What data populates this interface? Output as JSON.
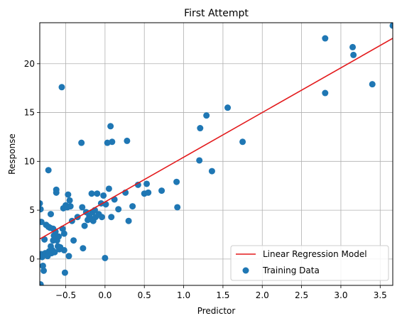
{
  "chart_data": {
    "type": "scatter",
    "title": "First Attempt",
    "xlabel": "Predictor",
    "ylabel": "Response",
    "xlim": [
      -0.83,
      3.66
    ],
    "ylim": [
      -2.7,
      24.2
    ],
    "xticks": [
      -0.5,
      0.0,
      0.5,
      1.0,
      1.5,
      2.0,
      2.5,
      3.0,
      3.5
    ],
    "xtick_labels": [
      "−0.5",
      "0.0",
      "0.5",
      "1.0",
      "1.5",
      "2.0",
      "2.5",
      "3.0",
      "3.5"
    ],
    "yticks": [
      0,
      5,
      10,
      15,
      20
    ],
    "ytick_labels": [
      "0",
      "5",
      "10",
      "15",
      "20"
    ],
    "grid": true,
    "legend_position": "lower-right",
    "series": [
      {
        "name": "Linear Regression Model",
        "kind": "line",
        "color": "#e31a1c",
        "x": [
          -0.83,
          3.66
        ],
        "y": [
          2.05,
          22.6
        ]
      },
      {
        "name": "Training Data",
        "kind": "scatter",
        "color": "#1f77b4",
        "points": [
          [
            -0.83,
            5.7
          ],
          [
            -0.82,
            5.1
          ],
          [
            -0.81,
            3.8
          ],
          [
            -0.82,
            -2.6
          ],
          [
            -0.81,
            0.5
          ],
          [
            -0.8,
            0.2
          ],
          [
            -0.79,
            -0.7
          ],
          [
            -0.78,
            -1.2
          ],
          [
            -0.77,
            2.0
          ],
          [
            -0.76,
            0.6
          ],
          [
            -0.75,
            3.5
          ],
          [
            -0.74,
            0.4
          ],
          [
            -0.73,
            0.3
          ],
          [
            -0.72,
            3.3
          ],
          [
            -0.72,
            9.1
          ],
          [
            -0.71,
            0.8
          ],
          [
            -0.7,
            3.2
          ],
          [
            -0.69,
            4.6
          ],
          [
            -0.69,
            1.3
          ],
          [
            -0.68,
            0.6
          ],
          [
            -0.67,
            0.9
          ],
          [
            -0.66,
            3.1
          ],
          [
            -0.66,
            1.9
          ],
          [
            -0.65,
            2.4
          ],
          [
            -0.64,
            0.7
          ],
          [
            -0.63,
            2.8
          ],
          [
            -0.62,
            6.8
          ],
          [
            -0.62,
            7.1
          ],
          [
            -0.61,
            1.9
          ],
          [
            -0.6,
            1.3
          ],
          [
            -0.59,
            2.3
          ],
          [
            -0.58,
            1.0
          ],
          [
            -0.57,
            1.2
          ],
          [
            -0.55,
            17.6
          ],
          [
            -0.54,
            3.1
          ],
          [
            -0.53,
            5.2
          ],
          [
            -0.52,
            2.6
          ],
          [
            -0.52,
            0.9
          ],
          [
            -0.51,
            -1.4
          ],
          [
            -0.5,
            5.5
          ],
          [
            -0.48,
            5.3
          ],
          [
            -0.47,
            6.6
          ],
          [
            -0.46,
            0.3
          ],
          [
            -0.45,
            6.0
          ],
          [
            -0.44,
            5.4
          ],
          [
            -0.42,
            3.9
          ],
          [
            -0.4,
            1.9
          ],
          [
            -0.35,
            4.3
          ],
          [
            -0.3,
            11.9
          ],
          [
            -0.29,
            5.3
          ],
          [
            -0.28,
            1.1
          ],
          [
            -0.26,
            3.4
          ],
          [
            -0.24,
            4.8
          ],
          [
            -0.22,
            4.0
          ],
          [
            -0.2,
            4.4
          ],
          [
            -0.18,
            4.1
          ],
          [
            -0.17,
            6.7
          ],
          [
            -0.16,
            4.8
          ],
          [
            -0.15,
            3.9
          ],
          [
            -0.13,
            5.0
          ],
          [
            -0.12,
            4.3
          ],
          [
            -0.1,
            6.7
          ],
          [
            -0.08,
            4.6
          ],
          [
            -0.05,
            5.7
          ],
          [
            -0.04,
            4.3
          ],
          [
            -0.02,
            6.5
          ],
          [
            0.0,
            0.1
          ],
          [
            0.01,
            5.6
          ],
          [
            0.03,
            11.9
          ],
          [
            0.05,
            7.2
          ],
          [
            0.07,
            13.6
          ],
          [
            0.08,
            4.3
          ],
          [
            0.09,
            12.0
          ],
          [
            0.12,
            6.1
          ],
          [
            0.17,
            5.1
          ],
          [
            0.26,
            6.8
          ],
          [
            0.28,
            12.1
          ],
          [
            0.3,
            3.9
          ],
          [
            0.35,
            5.4
          ],
          [
            0.42,
            7.6
          ],
          [
            0.5,
            6.7
          ],
          [
            0.53,
            7.7
          ],
          [
            0.55,
            6.8
          ],
          [
            0.72,
            7.0
          ],
          [
            0.91,
            7.9
          ],
          [
            0.92,
            5.3
          ],
          [
            1.2,
            10.1
          ],
          [
            1.21,
            13.4
          ],
          [
            1.29,
            14.7
          ],
          [
            1.36,
            9.0
          ],
          [
            1.56,
            15.5
          ],
          [
            1.75,
            12.0
          ],
          [
            2.8,
            22.6
          ],
          [
            2.8,
            17.0
          ],
          [
            3.15,
            21.7
          ],
          [
            3.16,
            20.9
          ],
          [
            3.4,
            17.9
          ],
          [
            3.66,
            23.9
          ]
        ]
      }
    ]
  }
}
